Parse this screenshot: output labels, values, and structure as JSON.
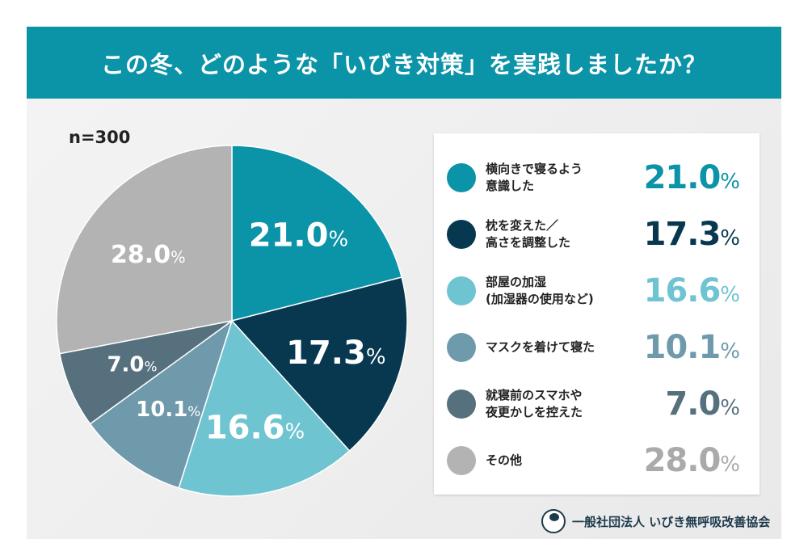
{
  "header": {
    "title": "この冬、どのような「いびき対策」を実践しましたか？"
  },
  "sample": "n=300",
  "footer": {
    "org": "一般社団法人 いびき無呼吸改善協会"
  },
  "chart_data": {
    "type": "pie",
    "title": "この冬、どのような「いびき対策」を実践しましたか？",
    "unit": "%",
    "start": "top-clockwise",
    "legend_placement": "right",
    "slices": [
      {
        "label": "横向きで寝るよう意識した",
        "label_lines": [
          "横向きで寝るよう",
          "意識した"
        ],
        "value": 21.0,
        "text": "21.0",
        "color": "#0b93a8",
        "label_color": "#ffffff"
      },
      {
        "label": "枕を変えた／高さを調整した",
        "label_lines": [
          "枕を変えた／",
          "高さを調整した"
        ],
        "value": 17.3,
        "text": "17.3",
        "color": "#08384f",
        "label_color": "#ffffff"
      },
      {
        "label": "部屋の加湿（加湿器の使用など）",
        "label_lines": [
          "部屋の加湿",
          "(加湿器の使用など)"
        ],
        "value": 16.6,
        "text": "16.6",
        "color": "#6fc4d2",
        "label_color": "#ffffff"
      },
      {
        "label": "マスクを着けて寝た",
        "label_lines": [
          "マスクを着けて寝た"
        ],
        "value": 10.1,
        "text": "10.1",
        "color": "#6f9aab",
        "label_color": "#ffffff"
      },
      {
        "label": "就寝前のスマホや夜更かしを控えた",
        "label_lines": [
          "就寝前のスマホや",
          "夜更かしを控えた"
        ],
        "value": 7.0,
        "text": "7.0",
        "color": "#56707e",
        "label_color": "#ffffff"
      },
      {
        "label": "その他",
        "label_lines": [
          "その他"
        ],
        "value": 28.0,
        "text": "28.0",
        "color": "#b3b3b3",
        "label_color": "#ffffff"
      }
    ]
  }
}
